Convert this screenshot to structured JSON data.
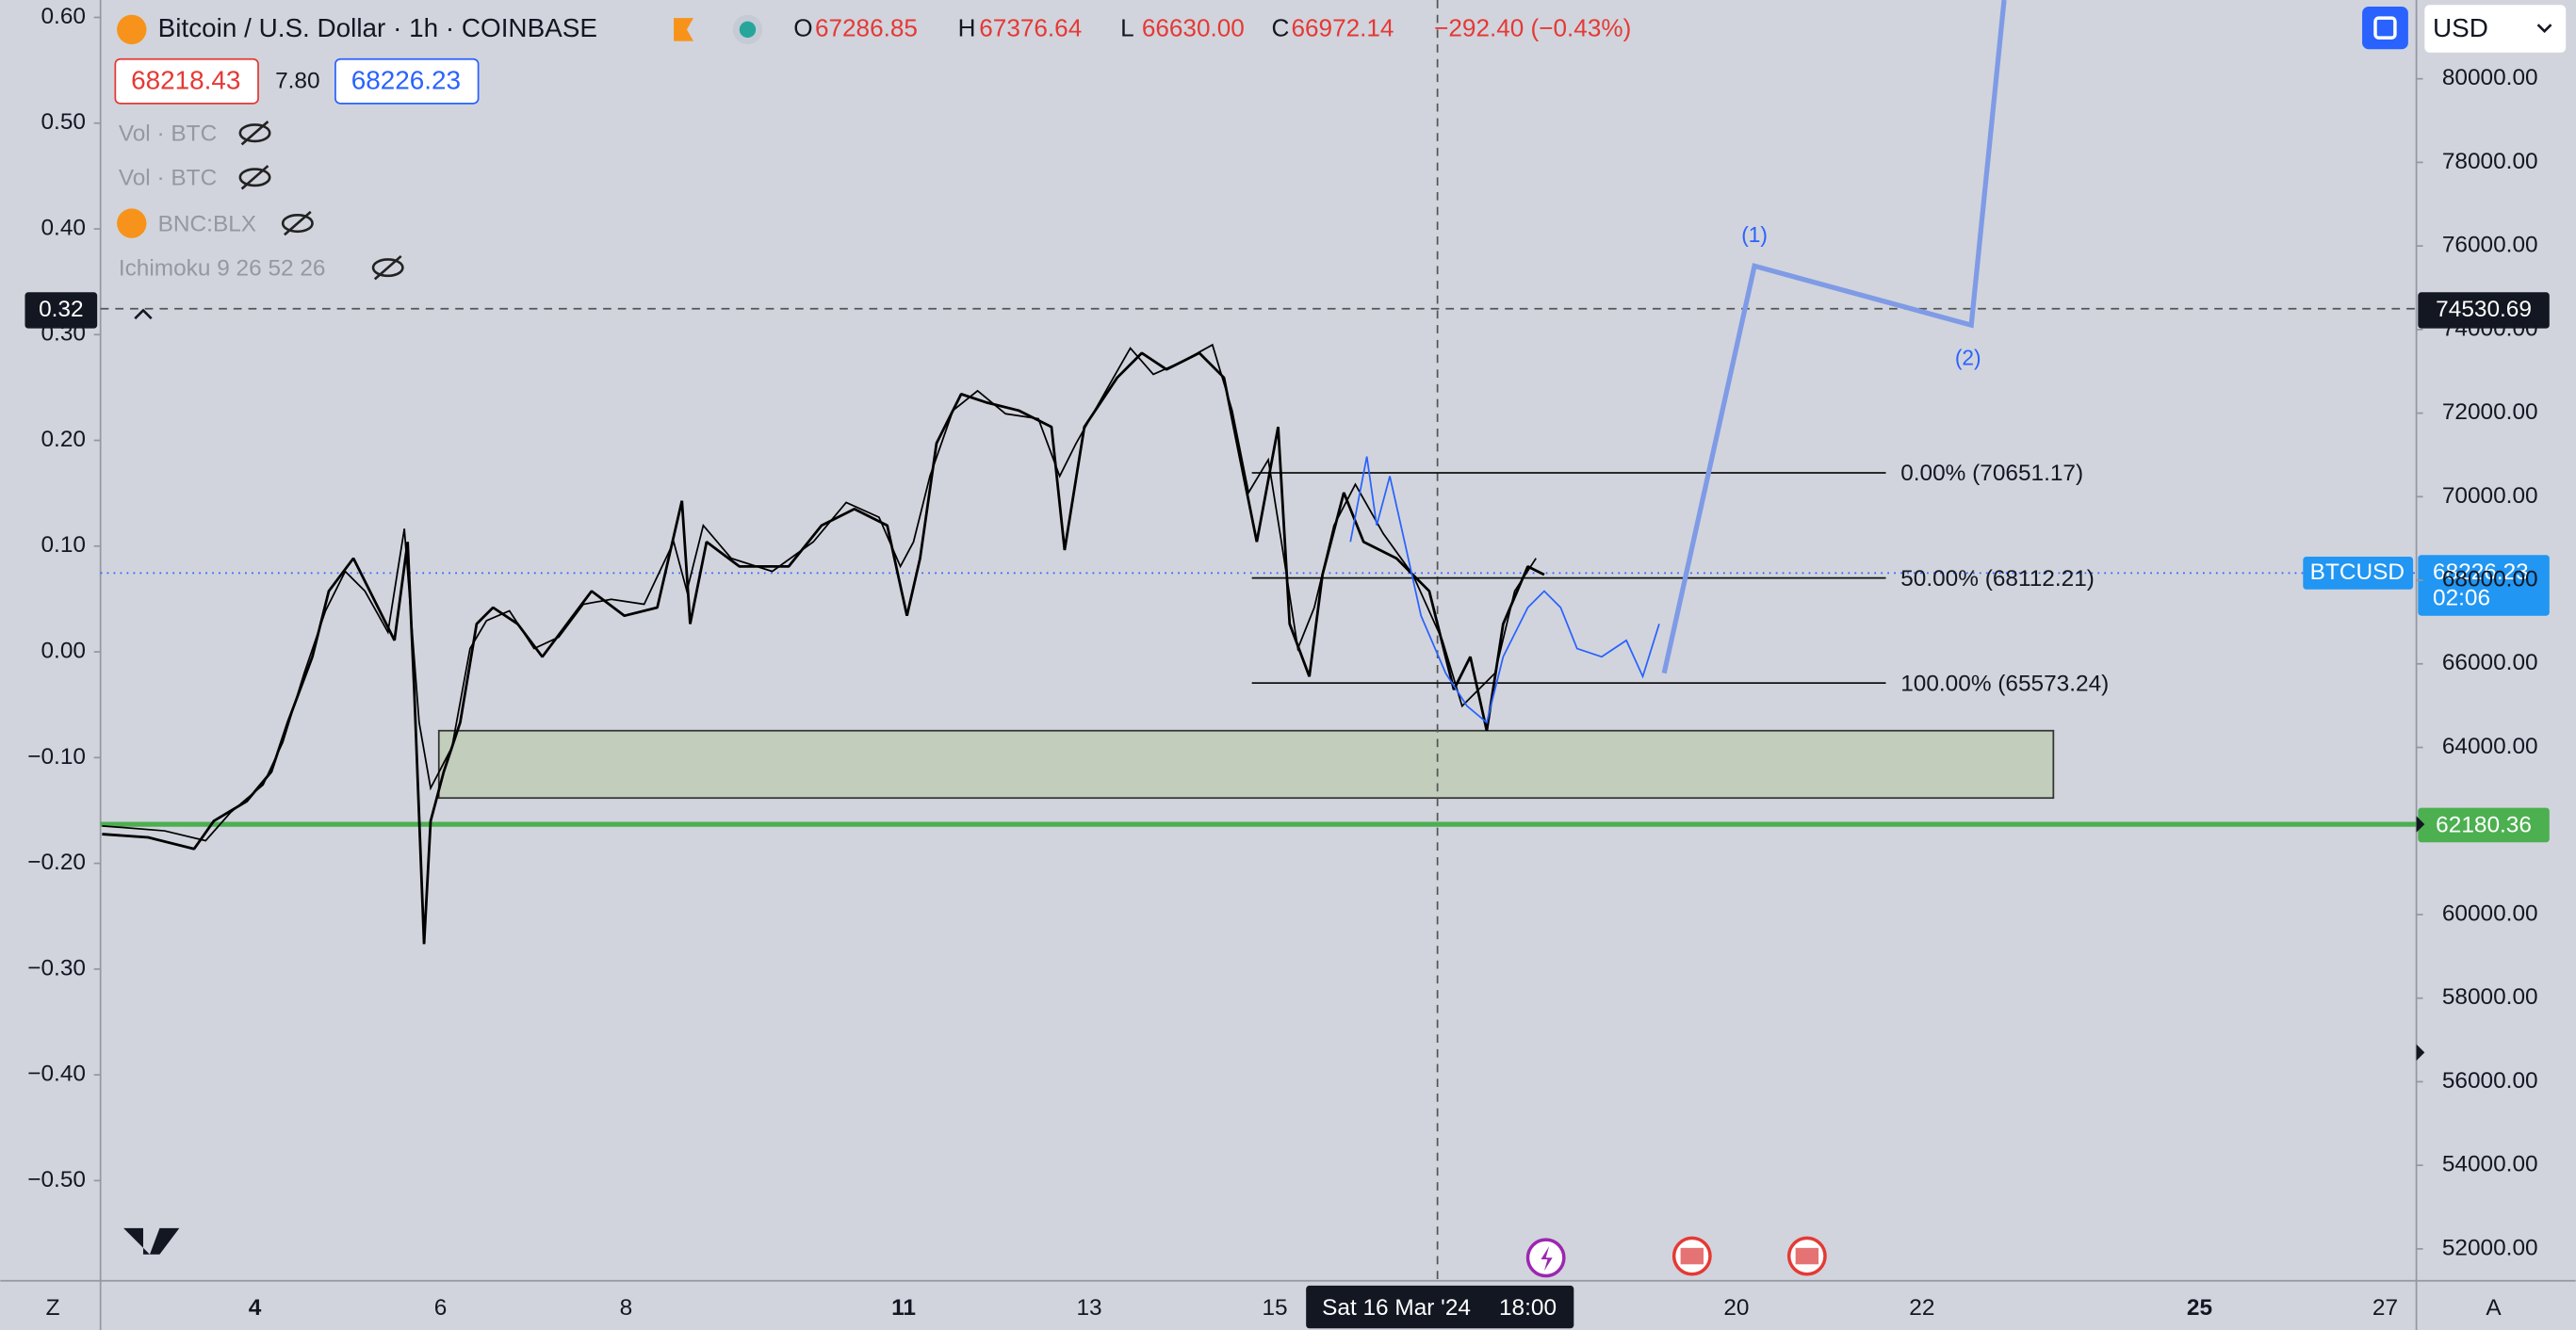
{
  "header": {
    "symbol": "Bitcoin / U.S. Dollar · 1h · COINBASE",
    "ohlc": [
      "O",
      "67286.85",
      "H",
      "67376.64",
      "L",
      "66630.00",
      "C",
      "66972.14"
    ],
    "change": "−292.40 (−0.43%)",
    "bid": "68218.43",
    "spread": "7.80",
    "ask": "68226.23",
    "currency": "USD"
  },
  "indicators": [
    "Vol · BTC",
    "Vol · BTC",
    "BNC:BLX",
    "Ichimoku 9 26 52 26"
  ],
  "left_axis": [
    {
      "value": 0.6,
      "label": "0.60"
    },
    {
      "value": 0.5,
      "label": "0.50"
    },
    {
      "value": 0.4,
      "label": "0.40"
    },
    {
      "value": 0.3,
      "label": "0.30"
    },
    {
      "value": 0.2,
      "label": "0.20"
    },
    {
      "value": 0.1,
      "label": "0.10"
    },
    {
      "value": 0,
      "label": "0.00"
    },
    {
      "value": -0.1,
      "label": "−0.10"
    },
    {
      "value": -0.2,
      "label": "−0.20"
    },
    {
      "value": -0.3,
      "label": "−0.30"
    },
    {
      "value": -0.4,
      "label": "−0.40"
    },
    {
      "value": -0.5,
      "label": "−0.50"
    }
  ],
  "right_axis": [
    {
      "value": 80000,
      "label": "80000.00"
    },
    {
      "value": 78000,
      "label": "78000.00"
    },
    {
      "value": 76000,
      "label": "76000.00"
    },
    {
      "value": 74000,
      "label": "74000.00"
    },
    {
      "value": 72000,
      "label": "72000.00"
    },
    {
      "value": 70000,
      "label": "70000.00"
    },
    {
      "value": 68000,
      "label": "68000.00"
    },
    {
      "value": 66000,
      "label": "66000.00"
    },
    {
      "value": 64000,
      "label": "64000.00"
    },
    {
      "value": 60000,
      "label": "60000.00"
    },
    {
      "value": 58000,
      "label": "58000.00"
    },
    {
      "value": 56000,
      "label": "56000.00"
    },
    {
      "value": 54000,
      "label": "54000.00"
    },
    {
      "value": 52000,
      "label": "52000.00"
    }
  ],
  "x_axis": [
    "Z",
    "4",
    "6",
    "8",
    "11",
    "13",
    "15",
    "20",
    "22",
    "25",
    "27",
    "A"
  ],
  "crosshair": {
    "left": "0.32",
    "right": "74530.69",
    "date": "Sat 16 Mar '24",
    "time": "18:00"
  },
  "price_labels": {
    "symbol": "BTCUSD",
    "price": "68226.23",
    "countdown": "02:06",
    "support": "62180.36"
  },
  "fib": [
    "0.00% (70651.17)",
    "50.00% (68112.21)",
    "100.00% (65573.24)"
  ],
  "waves": [
    "(1)",
    "(2)"
  ]
}
